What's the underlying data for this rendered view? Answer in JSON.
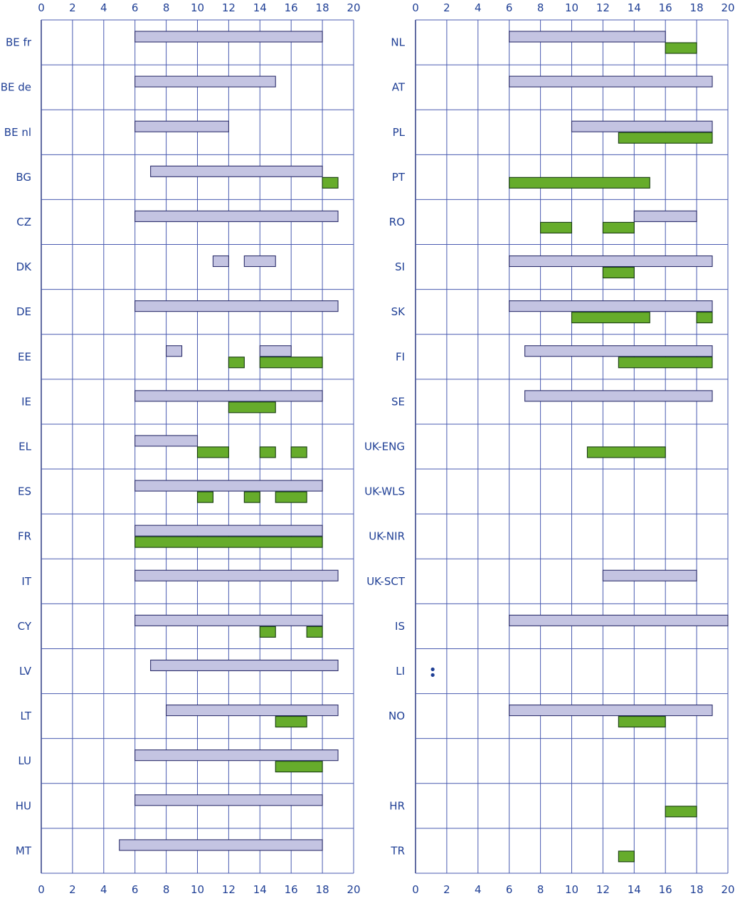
{
  "chart_data": {
    "type": "bar",
    "orientation": "horizontal-range",
    "title": "",
    "xlabel": "",
    "ylabel": "",
    "xlim": [
      0,
      20
    ],
    "x_ticks": [
      0,
      2,
      4,
      6,
      8,
      10,
      12,
      14,
      16,
      18,
      20
    ],
    "x_tick_labels": [
      "0",
      "2",
      "4",
      "6",
      "8",
      "10",
      "12",
      "14",
      "16",
      "18",
      "20"
    ],
    "grid": true,
    "legend": "none",
    "series_colors": {
      "a": "#c4c4e2",
      "b": "#66ac2b"
    },
    "panels": [
      {
        "rows": [
          {
            "label": "BE fr",
            "a": [
              [
                6,
                18
              ]
            ],
            "b": []
          },
          {
            "label": "BE de",
            "a": [
              [
                6,
                15
              ]
            ],
            "b": []
          },
          {
            "label": "BE nl",
            "a": [
              [
                6,
                12
              ]
            ],
            "b": []
          },
          {
            "label": "BG",
            "a": [
              [
                7,
                18
              ]
            ],
            "b": [
              [
                18,
                19
              ]
            ]
          },
          {
            "label": "CZ",
            "a": [
              [
                6,
                19
              ]
            ],
            "b": []
          },
          {
            "label": "DK",
            "a": [
              [
                11,
                12
              ],
              [
                13,
                15
              ]
            ],
            "b": []
          },
          {
            "label": "DE",
            "a": [
              [
                6,
                19
              ]
            ],
            "b": []
          },
          {
            "label": "EE",
            "a": [
              [
                8,
                9
              ],
              [
                14,
                16
              ]
            ],
            "b": [
              [
                12,
                13
              ],
              [
                14,
                18
              ]
            ]
          },
          {
            "label": "IE",
            "a": [
              [
                6,
                18
              ]
            ],
            "b": [
              [
                12,
                15
              ]
            ]
          },
          {
            "label": "EL",
            "a": [
              [
                6,
                10
              ]
            ],
            "b": [
              [
                10,
                12
              ],
              [
                14,
                15
              ],
              [
                16,
                17
              ]
            ]
          },
          {
            "label": "ES",
            "a": [
              [
                6,
                18
              ]
            ],
            "b": [
              [
                10,
                11
              ],
              [
                13,
                14
              ],
              [
                15,
                17
              ]
            ]
          },
          {
            "label": "FR",
            "a": [
              [
                6,
                18
              ]
            ],
            "b": [
              [
                6,
                18
              ]
            ]
          },
          {
            "label": "IT",
            "a": [
              [
                6,
                19
              ]
            ],
            "b": []
          },
          {
            "label": "CY",
            "a": [
              [
                6,
                18
              ]
            ],
            "b": [
              [
                14,
                15
              ],
              [
                17,
                18
              ]
            ]
          },
          {
            "label": "LV",
            "a": [
              [
                7,
                19
              ]
            ],
            "b": []
          },
          {
            "label": "LT",
            "a": [
              [
                8,
                19
              ]
            ],
            "b": [
              [
                15,
                17
              ]
            ]
          },
          {
            "label": "LU",
            "a": [
              [
                6,
                19
              ]
            ],
            "b": [
              [
                15,
                18
              ]
            ]
          },
          {
            "label": "HU",
            "a": [
              [
                6,
                18
              ]
            ],
            "b": []
          },
          {
            "label": "MT",
            "a": [
              [
                5,
                18
              ]
            ],
            "b": []
          }
        ]
      },
      {
        "rows": [
          {
            "label": "NL",
            "a": [
              [
                6,
                16
              ]
            ],
            "b": [
              [
                16,
                18
              ]
            ]
          },
          {
            "label": "AT",
            "a": [
              [
                6,
                19
              ]
            ],
            "b": []
          },
          {
            "label": "PL",
            "a": [
              [
                10,
                19
              ]
            ],
            "b": [
              [
                13,
                19
              ]
            ]
          },
          {
            "label": "PT",
            "a": [],
            "b": [
              [
                6,
                15
              ]
            ]
          },
          {
            "label": "RO",
            "a": [
              [
                14,
                18
              ]
            ],
            "b": [
              [
                8,
                10
              ],
              [
                12,
                14
              ]
            ]
          },
          {
            "label": "SI",
            "a": [
              [
                6,
                19
              ]
            ],
            "b": [
              [
                12,
                14
              ]
            ]
          },
          {
            "label": "SK",
            "a": [
              [
                6,
                19
              ]
            ],
            "b": [
              [
                10,
                15
              ],
              [
                18,
                19
              ]
            ]
          },
          {
            "label": "FI",
            "a": [
              [
                7,
                19
              ]
            ],
            "b": [
              [
                13,
                19
              ]
            ]
          },
          {
            "label": "SE",
            "a": [
              [
                7,
                19
              ]
            ],
            "b": []
          },
          {
            "label": "UK-ENG",
            "a": [],
            "b": [
              [
                11,
                16
              ]
            ]
          },
          {
            "label": "UK-WLS",
            "a": [],
            "b": []
          },
          {
            "label": "UK-NIR",
            "a": [],
            "b": []
          },
          {
            "label": "UK-SCT",
            "a": [
              [
                12,
                18
              ]
            ],
            "b": []
          },
          {
            "label": "IS",
            "a": [
              [
                6,
                20
              ]
            ],
            "b": []
          },
          {
            "label": "LI",
            "a": [],
            "b": [],
            "note": ":"
          },
          {
            "label": "NO",
            "a": [
              [
                6,
                19
              ]
            ],
            "b": [
              [
                13,
                16
              ]
            ]
          },
          {
            "label": "",
            "a": [],
            "b": []
          },
          {
            "label": "HR",
            "a": [],
            "b": [
              [
                16,
                18
              ]
            ]
          },
          {
            "label": "TR",
            "a": [],
            "b": [
              [
                13,
                14
              ]
            ]
          }
        ]
      }
    ]
  }
}
